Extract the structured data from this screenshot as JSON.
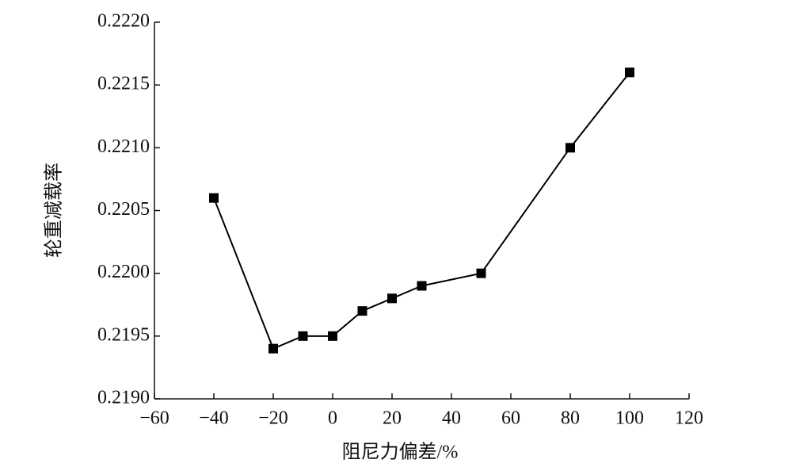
{
  "chart_data": {
    "type": "line",
    "x_label": "阻尼力偏差/%",
    "y_label": "轮重减载率",
    "x": [
      -40,
      -20,
      -10,
      0,
      10,
      20,
      30,
      50,
      80,
      100
    ],
    "series": [
      {
        "color": "#000000",
        "values": [
          0.2206,
          0.2194,
          0.2195,
          0.2195,
          0.2197,
          0.2198,
          0.2199,
          0.22,
          0.221,
          0.2216
        ]
      }
    ],
    "xlim": [
      -60,
      120
    ],
    "xticks": [
      {
        "value": -60,
        "label": "−60"
      },
      {
        "value": -40,
        "label": "−40"
      },
      {
        "value": -20,
        "label": "−20"
      },
      0,
      20,
      40,
      60,
      80,
      100,
      120
    ],
    "ylim": [
      0.219,
      0.222
    ],
    "yticks": [
      {
        "value": 0.219,
        "label": "0.2190"
      },
      0.2195,
      {
        "value": 0.22,
        "label": "0.2200"
      },
      0.2205,
      {
        "value": 0.221,
        "label": "0.2210"
      },
      0.2215,
      {
        "value": 0.222,
        "label": "0.2220"
      }
    ],
    "grid": false
  }
}
